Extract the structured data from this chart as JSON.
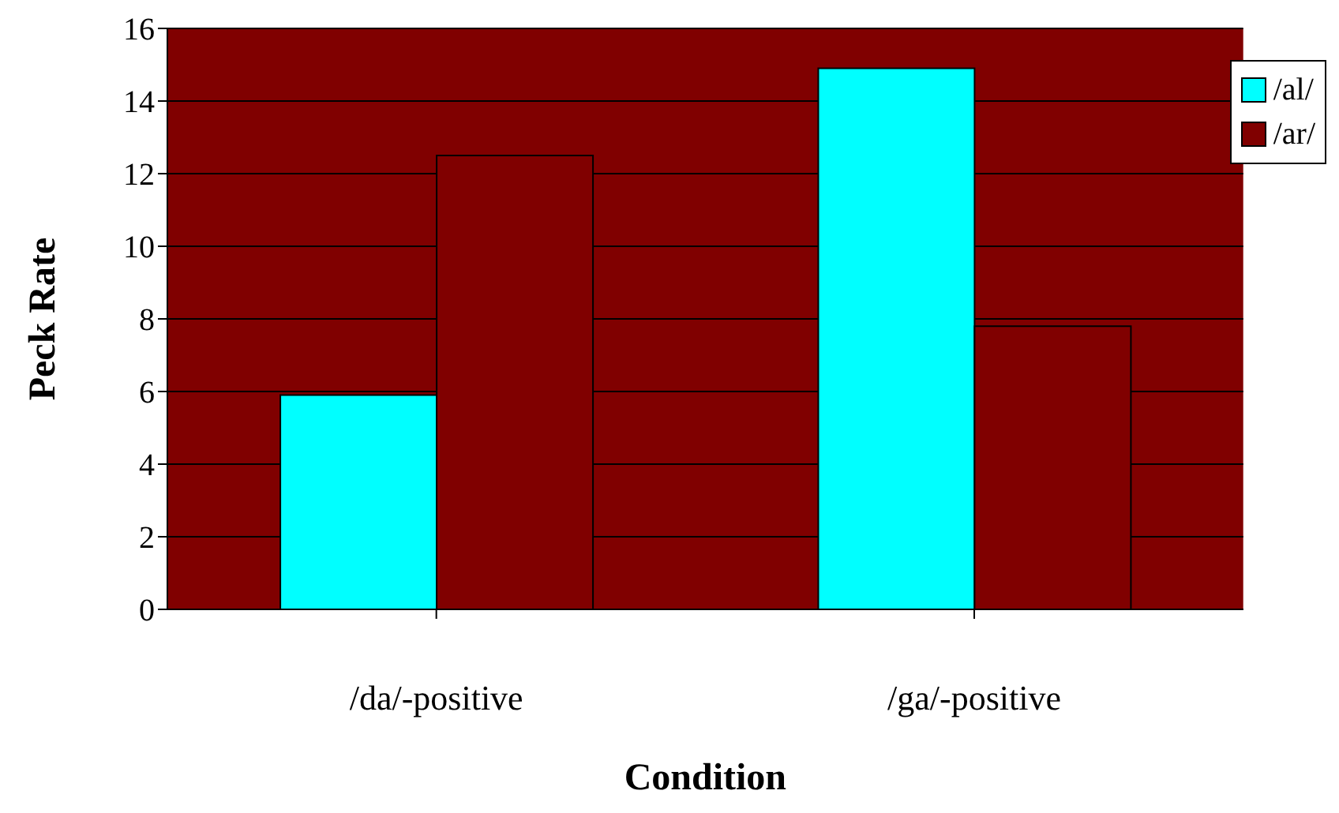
{
  "chart_data": {
    "type": "bar",
    "xlabel": "Condition",
    "ylabel": "Peck Rate",
    "categories": [
      "/da/-positive",
      "/ga/-positive"
    ],
    "series": [
      {
        "name": "/al/",
        "color": "#00ffff",
        "values": [
          5.9,
          14.9
        ]
      },
      {
        "name": "/ar/",
        "color": "#800000",
        "values": [
          12.5,
          7.8
        ]
      }
    ],
    "ylim": [
      0,
      16
    ],
    "yticks": [
      0,
      2,
      4,
      6,
      8,
      10,
      12,
      14,
      16
    ],
    "grid": "y",
    "legend": "top right"
  }
}
